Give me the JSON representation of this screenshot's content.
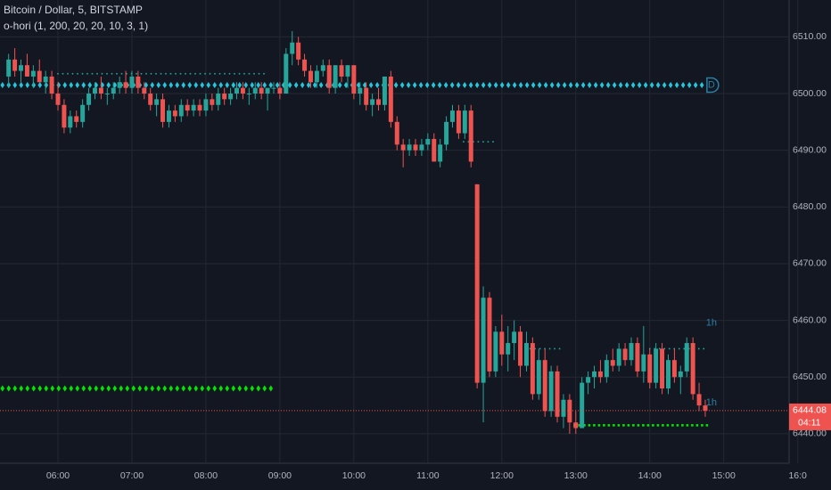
{
  "chart_data": {
    "type": "candlestick",
    "title": "Bitcoin / Dollar, 5, BITSTAMP",
    "subtitle": "o-hori (1, 200, 20, 20, 10, 3, 1)",
    "up_color": "#26a69a",
    "down_color": "#ef5350",
    "grid": true,
    "xlim": [
      313,
      953
    ],
    "ylim": [
      6434.8,
      6516.5
    ],
    "xticks": [
      {
        "value": 360,
        "label": "06:00"
      },
      {
        "value": 420,
        "label": "07:00"
      },
      {
        "value": 480,
        "label": "08:00"
      },
      {
        "value": 540,
        "label": "09:00"
      },
      {
        "value": 600,
        "label": "10:00"
      },
      {
        "value": 660,
        "label": "11:00"
      },
      {
        "value": 720,
        "label": "12:00"
      },
      {
        "value": 780,
        "label": "13:00"
      },
      {
        "value": 840,
        "label": "14:00"
      },
      {
        "value": 900,
        "label": "15:00"
      },
      {
        "value": 960,
        "label": "16:0"
      }
    ],
    "yticks": [
      {
        "value": 6510,
        "label": "6510.00"
      },
      {
        "value": 6500,
        "label": "6500.00"
      },
      {
        "value": 6490,
        "label": "6490.00"
      },
      {
        "value": 6480,
        "label": "6480.00"
      },
      {
        "value": 6470,
        "label": "6470.00"
      },
      {
        "value": 6460,
        "label": "6460.00"
      },
      {
        "value": 6450,
        "label": "6450.00"
      },
      {
        "value": 6440,
        "label": "6440.00"
      }
    ],
    "x": [
      320,
      325,
      330,
      335,
      340,
      345,
      350,
      355,
      360,
      365,
      370,
      375,
      380,
      385,
      390,
      395,
      400,
      405,
      410,
      415,
      420,
      425,
      430,
      435,
      440,
      445,
      450,
      455,
      460,
      465,
      470,
      475,
      480,
      485,
      490,
      495,
      500,
      505,
      510,
      515,
      520,
      525,
      530,
      535,
      540,
      545,
      550,
      555,
      560,
      565,
      570,
      575,
      580,
      585,
      590,
      595,
      600,
      605,
      610,
      615,
      620,
      625,
      630,
      635,
      640,
      645,
      650,
      655,
      660,
      665,
      670,
      675,
      680,
      685,
      690,
      695,
      700,
      705,
      710,
      715,
      720,
      725,
      730,
      735,
      740,
      745,
      750,
      755,
      760,
      765,
      770,
      775,
      780,
      785,
      790,
      795,
      800,
      805,
      810,
      815,
      820,
      825,
      830,
      835,
      840,
      845,
      850,
      855,
      860,
      865,
      870,
      875,
      880,
      885
    ],
    "candles": [
      [
        6503,
        6507,
        6501,
        6506
      ],
      [
        6506,
        6508,
        6503,
        6504
      ],
      [
        6504,
        6506,
        6502,
        6505
      ],
      [
        6505,
        6507,
        6503,
        6503
      ],
      [
        6503,
        6505,
        6501,
        6504
      ],
      [
        6504,
        6506,
        6502,
        6502
      ],
      [
        6502,
        6504,
        6500,
        6503
      ],
      [
        6503,
        6504,
        6499,
        6500
      ],
      [
        6500,
        6502,
        6497,
        6498
      ],
      [
        6498,
        6499,
        6493,
        6494
      ],
      [
        6494,
        6497,
        6493,
        6496
      ],
      [
        6496,
        6497,
        6494,
        6495
      ],
      [
        6495,
        6499,
        6494,
        6498
      ],
      [
        6498,
        6501,
        6497,
        6500
      ],
      [
        6500,
        6502,
        6499,
        6501
      ],
      [
        6501,
        6503,
        6499,
        6500
      ],
      [
        6500,
        6501,
        6498,
        6500
      ],
      [
        6500,
        6502,
        6499,
        6501
      ],
      [
        6501,
        6503,
        6500,
        6502
      ],
      [
        6502,
        6504,
        6500,
        6501
      ],
      [
        6501,
        6504,
        6500,
        6503
      ],
      [
        6503,
        6504,
        6500,
        6501
      ],
      [
        6501,
        6502,
        6499,
        6500
      ],
      [
        6500,
        6501,
        6497,
        6498
      ],
      [
        6498,
        6500,
        6496,
        6499
      ],
      [
        6499,
        6500,
        6494,
        6495
      ],
      [
        6495,
        6498,
        6494,
        6497
      ],
      [
        6497,
        6498,
        6495,
        6496
      ],
      [
        6496,
        6499,
        6495,
        6498
      ],
      [
        6498,
        6499,
        6496,
        6497
      ],
      [
        6497,
        6499,
        6496,
        6498
      ],
      [
        6498,
        6499,
        6496,
        6497
      ],
      [
        6497,
        6500,
        6496,
        6499
      ],
      [
        6499,
        6500,
        6497,
        6498
      ],
      [
        6498,
        6501,
        6497,
        6500
      ],
      [
        6500,
        6501,
        6498,
        6499
      ],
      [
        6499,
        6501,
        6498,
        6500
      ],
      [
        6500,
        6502,
        6499,
        6501
      ],
      [
        6501,
        6502,
        6499,
        6500
      ],
      [
        6500,
        6501,
        6498,
        6500
      ],
      [
        6500,
        6502,
        6499,
        6501
      ],
      [
        6501,
        6502,
        6499,
        6500
      ],
      [
        6500,
        6501,
        6497,
        6501
      ],
      [
        6501,
        6502,
        6500,
        6501
      ],
      [
        6501,
        6502,
        6499,
        6500
      ],
      [
        6500,
        6508,
        6500,
        6507
      ],
      [
        6507,
        6511,
        6505,
        6509
      ],
      [
        6509,
        6510,
        6505,
        6506
      ],
      [
        6506,
        6507,
        6503,
        6504
      ],
      [
        6504,
        6505,
        6501,
        6502
      ],
      [
        6502,
        6505,
        6501,
        6504
      ],
      [
        6504,
        6506,
        6503,
        6505
      ],
      [
        6505,
        6506,
        6500,
        6501
      ],
      [
        6501,
        6505,
        6500,
        6505
      ],
      [
        6505,
        6506,
        6502,
        6503
      ],
      [
        6503,
        6505,
        6501,
        6505
      ],
      [
        6505,
        6505,
        6499,
        6500
      ],
      [
        6500,
        6502,
        6498,
        6501
      ],
      [
        6501,
        6502,
        6497,
        6498
      ],
      [
        6498,
        6500,
        6496,
        6499
      ],
      [
        6499,
        6501,
        6497,
        6498
      ],
      [
        6498,
        6503,
        6497,
        6503
      ],
      [
        6503,
        6504,
        6494,
        6495
      ],
      [
        6495,
        6496,
        6490,
        6491
      ],
      [
        6491,
        6492,
        6487,
        6490
      ],
      [
        6490,
        6492,
        6489,
        6491
      ],
      [
        6491,
        6492,
        6489,
        6490
      ],
      [
        6490,
        6492,
        6489,
        6491
      ],
      [
        6491,
        6493,
        6490,
        6492
      ],
      [
        6492,
        6493,
        6488,
        6488
      ],
      [
        6488,
        6492,
        6487,
        6491
      ],
      [
        6491,
        6496,
        6490,
        6495
      ],
      [
        6495,
        6498,
        6494,
        6497
      ],
      [
        6497,
        6498,
        6492,
        6493
      ],
      [
        6493,
        6498,
        6492,
        6497
      ],
      [
        6497,
        6498,
        6487,
        6488
      ],
      [
        6484,
        6484,
        6448,
        6449
      ],
      [
        6449,
        6466,
        6442,
        6464
      ],
      [
        6464,
        6465,
        6450,
        6451
      ],
      [
        6451,
        6459,
        6450,
        6458
      ],
      [
        6458,
        6461,
        6452,
        6454
      ],
      [
        6454,
        6459,
        6451,
        6456
      ],
      [
        6456,
        6460,
        6453,
        6458
      ],
      [
        6458,
        6459,
        6450,
        6452
      ],
      [
        6452,
        6458,
        6451,
        6456
      ],
      [
        6456,
        6457,
        6446,
        6447
      ],
      [
        6447,
        6455,
        6446,
        6453
      ],
      [
        6453,
        6455,
        6443,
        6444
      ],
      [
        6444,
        6452,
        6443,
        6451
      ],
      [
        6451,
        6452,
        6442,
        6443
      ],
      [
        6443,
        6447,
        6441,
        6446
      ],
      [
        6446,
        6447,
        6440,
        6442
      ],
      [
        6442,
        6444,
        6440,
        6441
      ],
      [
        6441,
        6450,
        6441,
        6449
      ],
      [
        6449,
        6451,
        6447,
        6450
      ],
      [
        6450,
        6452,
        6448,
        6451
      ],
      [
        6451,
        6453,
        6449,
        6450
      ],
      [
        6450,
        6454,
        6449,
        6453
      ],
      [
        6453,
        6455,
        6451,
        6452
      ],
      [
        6452,
        6456,
        6451,
        6455
      ],
      [
        6455,
        6456,
        6452,
        6453
      ],
      [
        6453,
        6457,
        6452,
        6456
      ],
      [
        6456,
        6457,
        6450,
        6451
      ],
      [
        6451,
        6459,
        6449,
        6454
      ],
      [
        6454,
        6455,
        6448,
        6449
      ],
      [
        6449,
        6456,
        6448,
        6455
      ],
      [
        6455,
        6456,
        6447,
        6448
      ],
      [
        6448,
        6454,
        6447,
        6453
      ],
      [
        6453,
        6455,
        6449,
        6450
      ],
      [
        6450,
        6452,
        6447,
        6451
      ],
      [
        6451,
        6457,
        6450,
        6456
      ],
      [
        6456,
        6457,
        6446,
        6447
      ],
      [
        6447,
        6449,
        6444,
        6445
      ],
      [
        6445,
        6446,
        6443,
        6444.08
      ]
    ],
    "levels": [
      {
        "value": 6501.5,
        "from": 315,
        "to": 533,
        "color": "#26c6da",
        "style": "diamond"
      },
      {
        "value": 6501.5,
        "from": 538,
        "to": 884,
        "color": "#26c6da",
        "style": "diamond"
      },
      {
        "value": 6448,
        "from": 315,
        "to": 533,
        "color": "#00e600",
        "style": "diamond"
      },
      {
        "value": 6503.5,
        "from": 360,
        "to": 530,
        "color": "#26a69a",
        "style": "dot"
      },
      {
        "value": 6491.5,
        "from": 689,
        "to": 713,
        "color": "#26a69a",
        "style": "dot"
      },
      {
        "value": 6455,
        "from": 739,
        "to": 768,
        "color": "#26a69a",
        "style": "dot"
      },
      {
        "value": 6455,
        "from": 840,
        "to": 887,
        "color": "#26a69a",
        "style": "dot"
      },
      {
        "value": 6441.5,
        "from": 779,
        "to": 887,
        "color": "#00e600",
        "style": "square"
      }
    ],
    "annotations": [
      {
        "text": "1h",
        "x": 890,
        "y": 6459.5
      },
      {
        "text": "1h",
        "x": 890,
        "y": 6445.5
      },
      {
        "text": "D",
        "x": 890,
        "y": 6501.5
      }
    ],
    "last_price": 6444.08,
    "countdown": "04:11"
  }
}
